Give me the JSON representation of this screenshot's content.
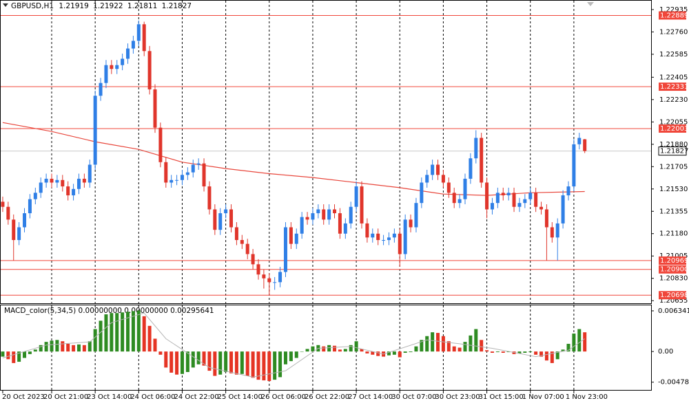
{
  "chart_data": {
    "type": "candlestick",
    "symbol": "GBPUSD,H1",
    "open": [
      1.2143,
      1.2139,
      1.2129,
      1.2113,
      1.2123,
      1.2134,
      1.2145,
      1.215,
      1.2158,
      1.2161,
      1.2158,
      1.216,
      1.2155,
      1.2148,
      1.2153,
      1.2161,
      1.2158,
      1.2172,
      1.2226,
      1.2236,
      1.225,
      1.2247,
      1.225,
      1.2255,
      1.2263,
      1.2269,
      1.2282,
      1.2261,
      1.2231,
      1.2201,
      1.2174,
      1.2158,
      1.216,
      1.216,
      1.2164,
      1.2166,
      1.2172,
      1.2173,
      1.2155,
      1.2137,
      1.2121,
      1.2134,
      1.2137,
      1.2123,
      1.2113,
      1.211,
      1.2102,
      1.2094,
      1.2086,
      1.2083,
      1.208,
      1.208,
      1.2088,
      1.2123,
      1.211,
      1.2118,
      1.2131,
      1.2129,
      1.2134,
      1.2137,
      1.2129,
      1.2137,
      1.2134,
      1.2118,
      1.2126,
      1.2139,
      1.2155,
      1.2126,
      1.2115,
      1.2118,
      1.2113,
      1.2113,
      1.2115,
      1.2118,
      1.2102,
      1.2129,
      1.2123,
      1.2142,
      1.2158,
      1.2164,
      1.2172,
      1.2164,
      1.2158,
      1.215,
      1.2142,
      1.2145,
      1.2161,
      1.2177,
      1.2193,
      1.2158,
      1.2137,
      1.2142,
      1.215,
      1.2148,
      1.215,
      1.2139,
      1.2142,
      1.2145,
      1.215,
      1.2139,
      1.2137,
      1.2123,
      1.2115,
      1.2126,
      1.2148,
      1.2155,
      1.2188,
      1.21919
    ],
    "high": [
      1.2147,
      1.2143,
      1.2133,
      1.2127,
      1.2138,
      1.2149,
      1.2154,
      1.2162,
      1.2165,
      1.2165,
      1.2164,
      1.2164,
      1.2159,
      1.2157,
      1.2165,
      1.2165,
      1.2176,
      1.223,
      1.224,
      1.2254,
      1.2254,
      1.2254,
      1.2259,
      1.2267,
      1.2273,
      1.2285,
      1.2284,
      1.2265,
      1.2235,
      1.2205,
      1.2178,
      1.2164,
      1.2164,
      1.2168,
      1.217,
      1.2176,
      1.2177,
      1.2177,
      1.2159,
      1.2141,
      1.2138,
      1.2141,
      1.2141,
      1.2127,
      1.2117,
      1.2114,
      1.2106,
      1.2098,
      1.209,
      1.2087,
      1.2084,
      1.2092,
      1.2127,
      1.2127,
      1.2122,
      1.2135,
      1.2135,
      1.2138,
      1.2141,
      1.2141,
      1.2141,
      1.2141,
      1.2138,
      1.213,
      1.2143,
      1.2159,
      1.2159,
      1.213,
      1.2122,
      1.2122,
      1.2117,
      1.2119,
      1.2122,
      1.2122,
      1.2133,
      1.2133,
      1.2146,
      1.2162,
      1.2168,
      1.2176,
      1.2176,
      1.2168,
      1.2162,
      1.2154,
      1.2149,
      1.2165,
      1.2181,
      1.2199,
      1.2197,
      1.2162,
      1.2146,
      1.2154,
      1.2154,
      1.2154,
      1.2154,
      1.2146,
      1.2149,
      1.2154,
      1.2154,
      1.2143,
      1.2141,
      1.2127,
      1.213,
      1.2152,
      1.2159,
      1.2192,
      1.2197,
      1.21922
    ],
    "low": [
      1.2135,
      1.2125,
      1.2097,
      1.2109,
      1.2119,
      1.213,
      1.2141,
      1.2146,
      1.2154,
      1.2154,
      1.2154,
      1.2151,
      1.2144,
      1.2144,
      1.2149,
      1.2154,
      1.2154,
      1.2168,
      1.2222,
      1.2232,
      1.2243,
      1.2243,
      1.2246,
      1.2251,
      1.2259,
      1.2265,
      1.2257,
      1.2227,
      1.2197,
      1.217,
      1.2154,
      1.2154,
      1.2156,
      1.2156,
      1.216,
      1.2162,
      1.2168,
      1.2151,
      1.2133,
      1.2117,
      1.2117,
      1.213,
      1.2119,
      1.2109,
      1.2106,
      1.2098,
      1.209,
      1.2082,
      1.2075,
      1.207,
      1.2074,
      1.2076,
      1.2084,
      1.2106,
      1.2106,
      1.2114,
      1.2125,
      1.2125,
      1.213,
      1.2125,
      1.2125,
      1.213,
      1.2114,
      1.2114,
      1.2122,
      1.2135,
      1.2122,
      1.2111,
      1.2111,
      1.2109,
      1.2109,
      1.2109,
      1.2111,
      1.2092,
      1.2098,
      1.2119,
      1.2119,
      1.2138,
      1.2154,
      1.216,
      1.216,
      1.2154,
      1.2146,
      1.2138,
      1.2138,
      1.2141,
      1.2157,
      1.2173,
      1.2154,
      1.213,
      1.2133,
      1.2138,
      1.2144,
      1.2144,
      1.2135,
      1.2135,
      1.2138,
      1.2141,
      1.2135,
      1.2133,
      1.2097,
      1.2111,
      1.2097,
      1.2122,
      1.2144,
      1.2151,
      1.2184,
      1.21811
    ],
    "close": [
      1.2139,
      1.2129,
      1.2113,
      1.2123,
      1.2134,
      1.2145,
      1.215,
      1.2158,
      1.2161,
      1.2158,
      1.216,
      1.2155,
      1.2148,
      1.2153,
      1.2161,
      1.2158,
      1.2172,
      1.2226,
      1.2236,
      1.225,
      1.2247,
      1.225,
      1.2255,
      1.2263,
      1.2269,
      1.2282,
      1.2261,
      1.2231,
      1.2201,
      1.2174,
      1.2158,
      1.216,
      1.216,
      1.2164,
      1.2166,
      1.2172,
      1.2173,
      1.2155,
      1.2137,
      1.2121,
      1.2134,
      1.2137,
      1.2123,
      1.2113,
      1.211,
      1.2102,
      1.2094,
      1.2086,
      1.2083,
      1.208,
      1.208,
      1.2088,
      1.2123,
      1.211,
      1.2118,
      1.2131,
      1.2129,
      1.2134,
      1.2137,
      1.2129,
      1.2137,
      1.2134,
      1.2118,
      1.2126,
      1.2139,
      1.2155,
      1.2126,
      1.2115,
      1.2118,
      1.2113,
      1.2113,
      1.2115,
      1.2118,
      1.2102,
      1.2129,
      1.2123,
      1.2142,
      1.2158,
      1.2164,
      1.2172,
      1.2164,
      1.2158,
      1.215,
      1.2142,
      1.2145,
      1.2161,
      1.2177,
      1.2193,
      1.2158,
      1.2137,
      1.2142,
      1.215,
      1.2148,
      1.215,
      1.2139,
      1.2142,
      1.2145,
      1.215,
      1.2139,
      1.2137,
      1.2123,
      1.2115,
      1.2126,
      1.2148,
      1.2155,
      1.2188,
      1.2193,
      1.21827
    ],
    "up_color": "#2f7fe6",
    "down_color": "#e0352b",
    "xlim": [
      -0.5,
      119.2
    ],
    "xticks": [
      {
        "value": 0,
        "label": "20 Oct 2023"
      },
      {
        "value": 9,
        "label": "20 Oct 21:00"
      },
      {
        "value": 17,
        "label": "23 Oct 14:00"
      },
      {
        "value": 25,
        "label": "24 Oct 06:00"
      },
      {
        "value": 33,
        "label": "24 Oct 22:00"
      },
      {
        "value": 41,
        "label": "25 Oct 14:00"
      },
      {
        "value": 49,
        "label": "26 Oct 06:00"
      },
      {
        "value": 57,
        "label": "26 Oct 22:00"
      },
      {
        "value": 65,
        "label": "27 Oct 14:00"
      },
      {
        "value": 73,
        "label": "30 Oct 07:00"
      },
      {
        "value": 81,
        "label": "30 Oct 23:00"
      },
      {
        "value": 89,
        "label": "31 Oct 15:00"
      },
      {
        "value": 97,
        "label": "1 Nov 07:00"
      },
      {
        "value": 105,
        "label": "1 Nov 23:00"
      }
    ],
    "ylim": [
      1.2064,
      1.2301
    ],
    "yticks": [
      1.22935,
      {
        "value": 1.2276,
        "label": "1.22760"
      },
      1.22585,
      1.22405,
      {
        "value": 1.2223,
        "label": "1.22230"
      },
      1.22055,
      {
        "value": 1.2188,
        "label": "1.21880"
      },
      1.21705,
      {
        "value": 1.2153,
        "label": "1.21530"
      },
      1.21355,
      {
        "value": 1.2118,
        "label": "1.21180"
      },
      1.21005,
      {
        "value": 1.2083,
        "label": "1.20830"
      },
      1.20655
    ],
    "grid": true,
    "ma": {
      "x": [
        0,
        9,
        17,
        25,
        33,
        41,
        49,
        57,
        65,
        73,
        81,
        89,
        97,
        107
      ],
      "values": [
        1.2205,
        1.2198,
        1.219,
        1.2184,
        1.2174,
        1.2169,
        1.2165,
        1.2162,
        1.2158,
        1.2154,
        1.2149,
        1.2148,
        1.215,
        1.2151
      ],
      "color": "#e8453a"
    },
    "levels": [
      1.22889,
      1.22331,
      1.22003,
      1.20969,
      {
        "value": 1.209,
        "label": "1.20900"
      },
      1.20698
    ],
    "level_color": "#f0463a",
    "macd": {
      "title": "MACD_color(5,34,5) 0.00000000 0.00000000 0.00295641",
      "histogram": [
        -0.0008,
        -0.0012,
        -0.0018,
        -0.0016,
        -0.001,
        -0.0004,
        0.0003,
        0.001,
        0.0015,
        0.0017,
        0.0018,
        0.0016,
        0.0012,
        0.001,
        0.0011,
        0.001,
        0.0016,
        0.0035,
        0.0048,
        0.0058,
        0.006,
        0.006,
        0.0061,
        0.0062,
        0.0063,
        0.0064,
        0.0055,
        0.004,
        0.002,
        -0.0005,
        -0.0025,
        -0.0033,
        -0.0036,
        -0.0035,
        -0.0032,
        -0.0025,
        -0.002,
        -0.0022,
        -0.003,
        -0.0038,
        -0.0036,
        -0.0032,
        -0.0034,
        -0.0036,
        -0.0035,
        -0.0038,
        -0.0041,
        -0.0044,
        -0.0045,
        -0.0046,
        -0.0044,
        -0.004,
        -0.002,
        -0.0015,
        -0.001,
        0.0,
        0.0004,
        0.0008,
        0.001,
        0.0008,
        0.001,
        0.0009,
        0.0003,
        0.0004,
        0.001,
        0.0016,
        0.0004,
        -0.0003,
        -0.0005,
        -0.0007,
        -0.0008,
        -0.0006,
        -0.0005,
        -0.0009,
        -0.0002,
        -0.0001,
        0.0008,
        0.0018,
        0.0024,
        0.003,
        0.0029,
        0.0024,
        0.0016,
        0.0008,
        0.0006,
        0.0015,
        0.0025,
        0.0035,
        0.0018,
        0.0002,
        -0.0002,
        -0.0001,
        -0.0002,
        -0.0001,
        -0.0004,
        -0.0003,
        -0.0002,
        -0.0001,
        -0.0005,
        -0.0008,
        -0.0014,
        -0.0018,
        -0.0012,
        0.0003,
        0.0012,
        0.0028,
        0.0035,
        0.003
      ],
      "up_color": "#2e8b22",
      "down_color": "#e53424",
      "signal": {
        "x": [
          0,
          8,
          16,
          20,
          26,
          30,
          38,
          46,
          52,
          58,
          64,
          70,
          78,
          84,
          90,
          98,
          104,
          107
        ],
        "values": [
          -0.001,
          0.001,
          0.0015,
          0.0045,
          0.006,
          0.002,
          -0.0025,
          -0.004,
          -0.003,
          0.0005,
          0.0008,
          -0.0004,
          0.0018,
          0.0012,
          0.0005,
          -0.0008,
          0.0002,
          0.002
        ],
        "color": "#b5b5b5"
      },
      "ylim": [
        -0.0061,
        0.0072
      ],
      "yticks": [
        0.0063413,
        {
          "value": 0,
          "label": "0.00"
        },
        {
          "value": -0.004783,
          "label": "-0.0047830"
        }
      ]
    }
  }
}
